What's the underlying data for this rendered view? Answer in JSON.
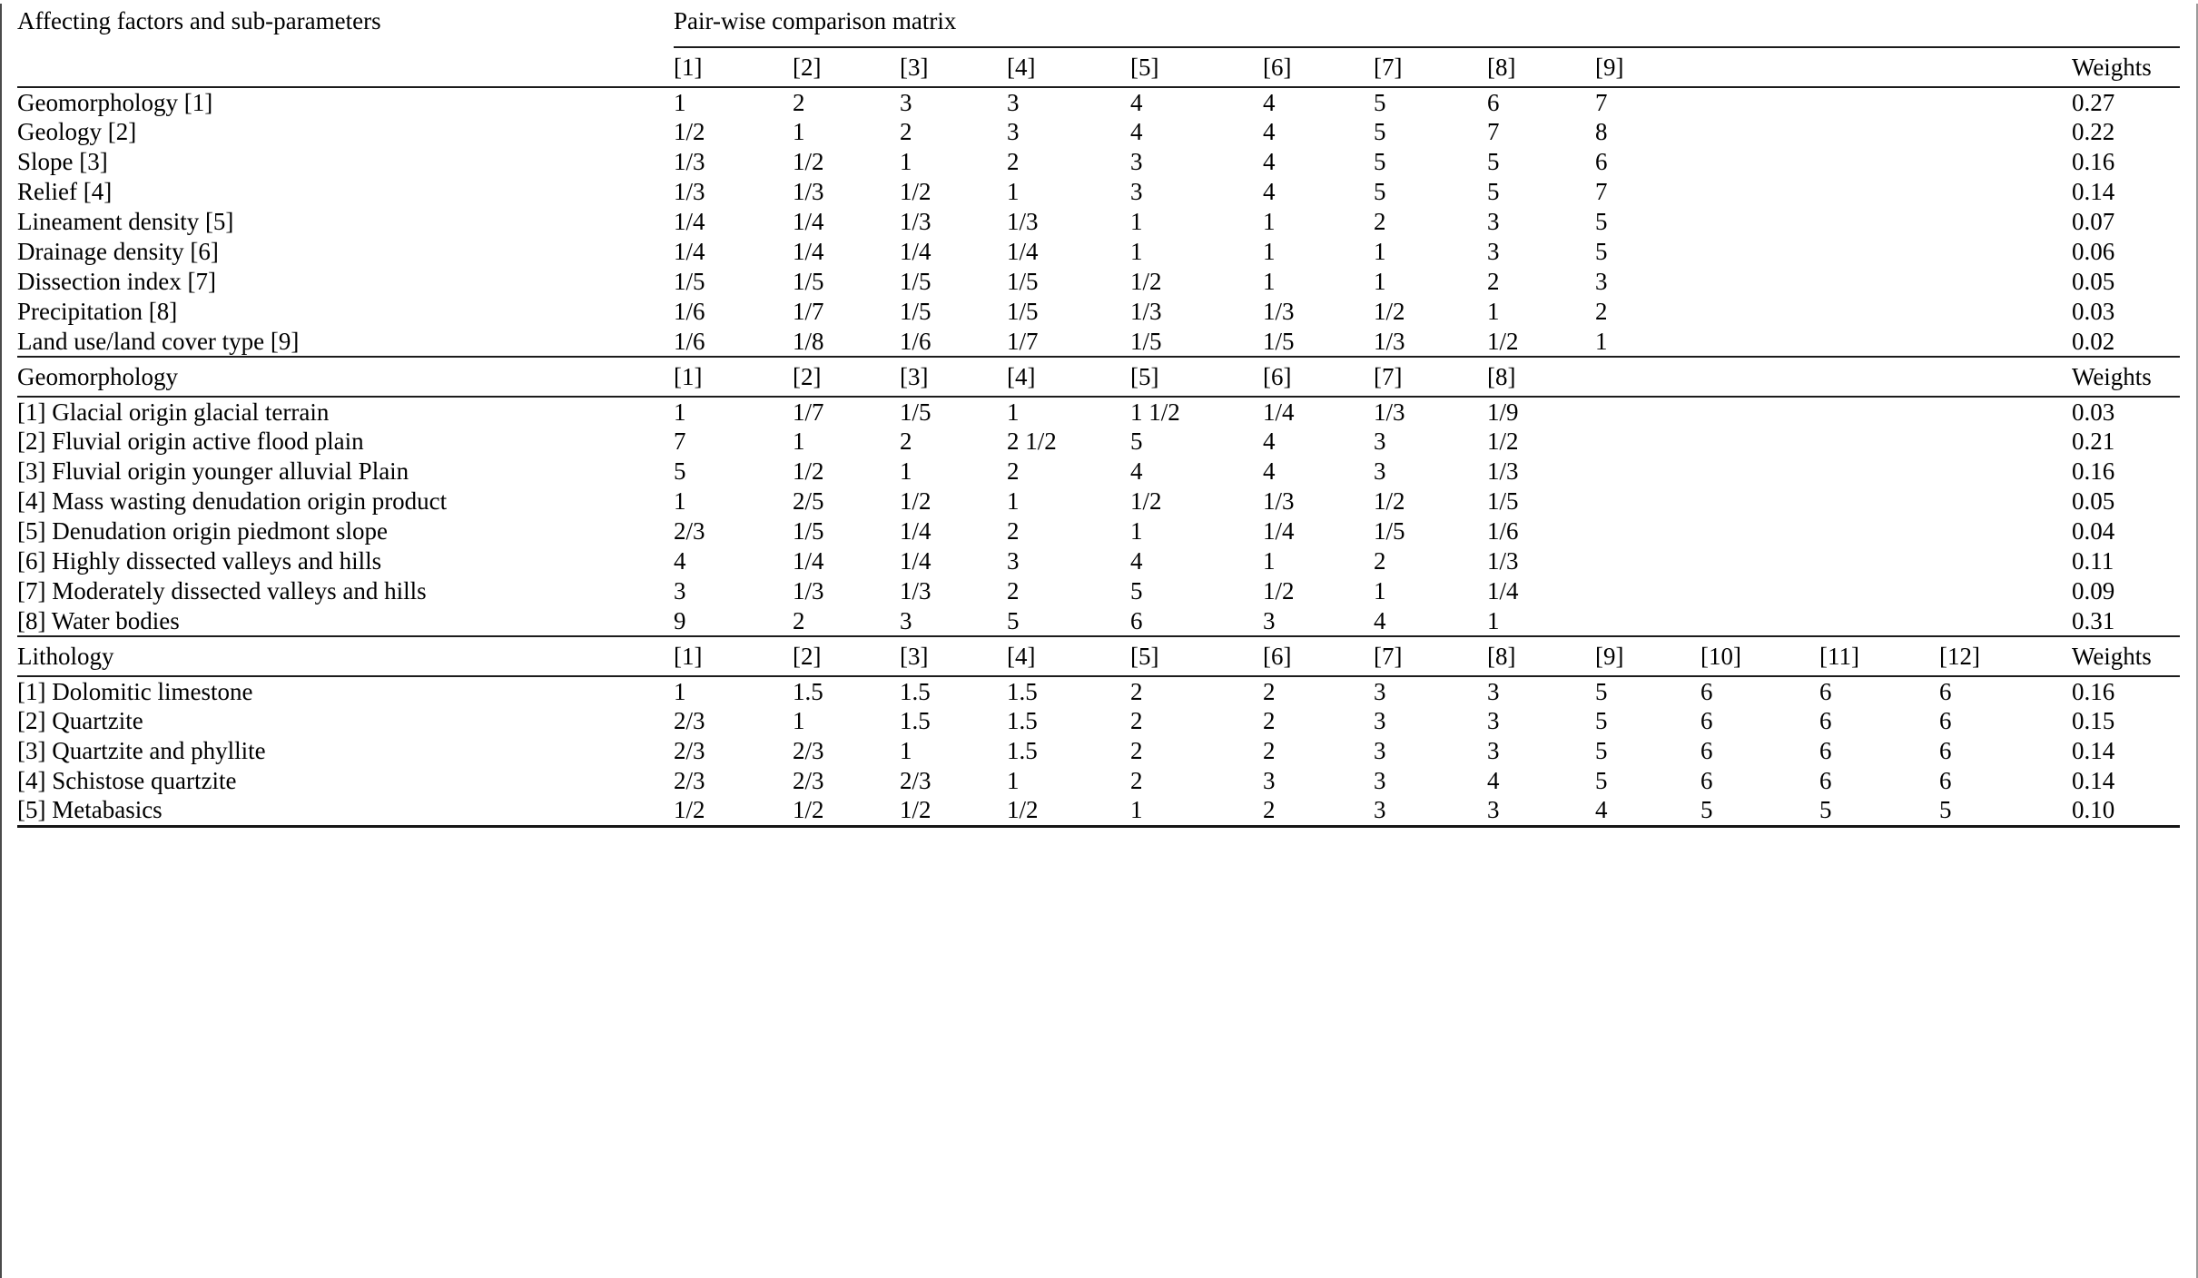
{
  "colors": {
    "text": "#000000",
    "background": "#ffffff",
    "rule": "#1c1c1c"
  },
  "header": {
    "left_title": "Affecting factors and sub-parameters",
    "matrix_title": "Pair-wise comparison matrix"
  },
  "sections": [
    {
      "name": "",
      "columns": [
        "[1]",
        "[2]",
        "[3]",
        "[4]",
        "[5]",
        "[6]",
        "[7]",
        "[8]",
        "[9]"
      ],
      "weights_header": "Weights",
      "rows": [
        {
          "label": "Geomorphology [1]",
          "values": [
            "1",
            "2",
            "3",
            "3",
            "4",
            "4",
            "5",
            "6",
            "7"
          ],
          "weight": "0.27"
        },
        {
          "label": "Geology [2]",
          "values": [
            "1/2",
            "1",
            "2",
            "3",
            "4",
            "4",
            "5",
            "7",
            "8"
          ],
          "weight": "0.22"
        },
        {
          "label": "Slope [3]",
          "values": [
            "1/3",
            "1/2",
            "1",
            "2",
            "3",
            "4",
            "5",
            "5",
            "6"
          ],
          "weight": "0.16"
        },
        {
          "label": "Relief [4]",
          "values": [
            "1/3",
            "1/3",
            "1/2",
            "1",
            "3",
            "4",
            "5",
            "5",
            "7"
          ],
          "weight": "0.14"
        },
        {
          "label": "Lineament density [5]",
          "values": [
            "1/4",
            "1/4",
            "1/3",
            "1/3",
            "1",
            "1",
            "2",
            "3",
            "5"
          ],
          "weight": "0.07"
        },
        {
          "label": "Drainage density [6]",
          "values": [
            "1/4",
            "1/4",
            "1/4",
            "1/4",
            "1",
            "1",
            "1",
            "3",
            "5"
          ],
          "weight": "0.06"
        },
        {
          "label": "Dissection index [7]",
          "values": [
            "1/5",
            "1/5",
            "1/5",
            "1/5",
            "1/2",
            "1",
            "1",
            "2",
            "3"
          ],
          "weight": "0.05"
        },
        {
          "label": "Precipitation [8]",
          "values": [
            "1/6",
            "1/7",
            "1/5",
            "1/5",
            "1/3",
            "1/3",
            "1/2",
            "1",
            "2"
          ],
          "weight": "0.03"
        },
        {
          "label": "Land use/land cover type [9]",
          "values": [
            "1/6",
            "1/8",
            "1/6",
            "1/7",
            "1/5",
            "1/5",
            "1/3",
            "1/2",
            "1"
          ],
          "weight": "0.02"
        }
      ]
    },
    {
      "name": "Geomorphology",
      "columns": [
        "[1]",
        "[2]",
        "[3]",
        "[4]",
        "[5]",
        "[6]",
        "[7]",
        "[8]"
      ],
      "weights_header": "Weights",
      "rows": [
        {
          "label": "[1] Glacial origin glacial terrain",
          "values": [
            "1",
            "1/7",
            "1/5",
            "1",
            "1 1/2",
            "1/4",
            "1/3",
            "1/9"
          ],
          "weight": "0.03"
        },
        {
          "label": "[2] Fluvial origin active flood plain",
          "values": [
            "7",
            "1",
            "2",
            "2 1/2",
            "5",
            "4",
            "3",
            "1/2"
          ],
          "weight": "0.21"
        },
        {
          "label": "[3] Fluvial origin younger alluvial Plain",
          "values": [
            "5",
            "1/2",
            "1",
            "2",
            "4",
            "4",
            "3",
            "1/3"
          ],
          "weight": "0.16"
        },
        {
          "label": "[4] Mass wasting denudation origin product",
          "values": [
            "1",
            "2/5",
            "1/2",
            "1",
            "1/2",
            "1/3",
            "1/2",
            "1/5"
          ],
          "weight": "0.05"
        },
        {
          "label": "[5] Denudation origin piedmont slope",
          "values": [
            "2/3",
            "1/5",
            "1/4",
            "2",
            "1",
            "1/4",
            "1/5",
            "1/6"
          ],
          "weight": "0.04"
        },
        {
          "label": "[6] Highly dissected valleys and hills",
          "values": [
            "4",
            "1/4",
            "1/4",
            "3",
            "4",
            "1",
            "2",
            "1/3"
          ],
          "weight": "0.11"
        },
        {
          "label": "[7] Moderately dissected valleys and hills",
          "values": [
            "3",
            "1/3",
            "1/3",
            "2",
            "5",
            "1/2",
            "1",
            "1/4"
          ],
          "weight": "0.09"
        },
        {
          "label": "[8] Water bodies",
          "values": [
            "9",
            "2",
            "3",
            "5",
            "6",
            "3",
            "4",
            "1"
          ],
          "weight": "0.31"
        }
      ]
    },
    {
      "name": "Lithology",
      "columns": [
        "[1]",
        "[2]",
        "[3]",
        "[4]",
        "[5]",
        "[6]",
        "[7]",
        "[8]",
        "[9]",
        "[10]",
        "[11]",
        "[12]"
      ],
      "weights_header": "Weights",
      "rows": [
        {
          "label": "[1] Dolomitic limestone",
          "values": [
            "1",
            "1.5",
            "1.5",
            "1.5",
            "2",
            "2",
            "3",
            "3",
            "5",
            "6",
            "6",
            "6"
          ],
          "weight": "0.16"
        },
        {
          "label": "[2] Quartzite",
          "values": [
            "2/3",
            "1",
            "1.5",
            "1.5",
            "2",
            "2",
            "3",
            "3",
            "5",
            "6",
            "6",
            "6"
          ],
          "weight": "0.15"
        },
        {
          "label": "[3] Quartzite and phyllite",
          "values": [
            "2/3",
            "2/3",
            "1",
            "1.5",
            "2",
            "2",
            "3",
            "3",
            "5",
            "6",
            "6",
            "6"
          ],
          "weight": "0.14"
        },
        {
          "label": "[4] Schistose quartzite",
          "values": [
            "2/3",
            "2/3",
            "2/3",
            "1",
            "2",
            "3",
            "3",
            "4",
            "5",
            "6",
            "6",
            "6"
          ],
          "weight": "0.14"
        },
        {
          "label": "[5] Metabasics",
          "values": [
            "1/2",
            "1/2",
            "1/2",
            "1/2",
            "1",
            "2",
            "3",
            "3",
            "4",
            "5",
            "5",
            "5"
          ],
          "weight": "0.10"
        }
      ]
    }
  ]
}
